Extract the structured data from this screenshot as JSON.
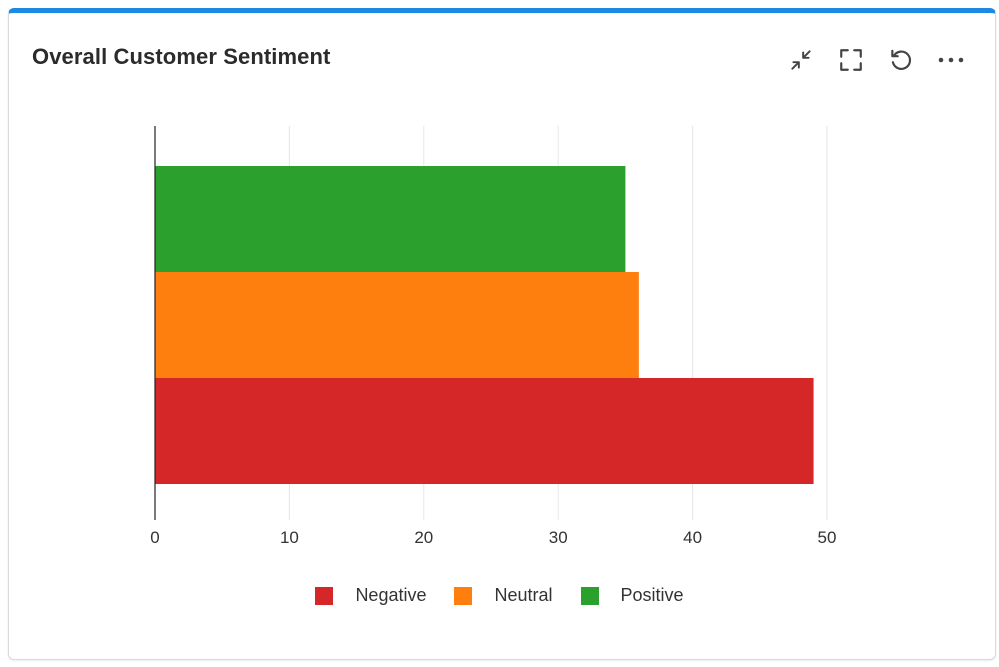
{
  "card": {
    "title": "Overall Customer Sentiment",
    "accent_color": "#1e88e5",
    "toolbar": [
      {
        "name": "collapse-icon"
      },
      {
        "name": "fullscreen-icon"
      },
      {
        "name": "refresh-icon"
      },
      {
        "name": "more-options-icon"
      }
    ]
  },
  "chart_data": {
    "type": "bar",
    "orientation": "horizontal",
    "title": "Overall Customer Sentiment",
    "xlabel": "",
    "ylabel": "",
    "xlim": [
      0,
      50
    ],
    "xticks": [
      0,
      10,
      20,
      30,
      40,
      50
    ],
    "grid": "vertical",
    "legend_position": "bottom",
    "series": [
      {
        "name": "Negative",
        "value": 49,
        "color": "#d62728"
      },
      {
        "name": "Neutral",
        "value": 36,
        "color": "#ff7f0e"
      },
      {
        "name": "Positive",
        "value": 35,
        "color": "#2ca02c"
      }
    ]
  }
}
